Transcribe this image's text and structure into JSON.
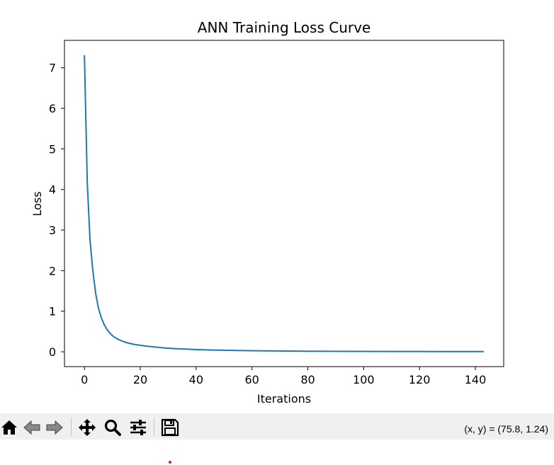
{
  "window": {
    "coords_readout": "(x, y) = (75.8, 1.24)"
  },
  "toolbar": {
    "buttons": [
      {
        "icon": "home-icon"
      },
      {
        "icon": "back-arrow-icon"
      },
      {
        "icon": "forward-arrow-icon"
      },
      {
        "icon": "pan-move-icon"
      },
      {
        "icon": "zoom-magnifier-icon"
      },
      {
        "icon": "configure-subplots-icon"
      },
      {
        "icon": "save-floppy-icon"
      }
    ]
  },
  "colors": {
    "line": "#1f77b4",
    "toolbar_bg": "#f0f0f0"
  },
  "chart_data": {
    "type": "line",
    "title": "ANN Training Loss Curve",
    "xlabel": "Iterations",
    "ylabel": "Loss",
    "xlim": [
      -7.15,
      150.15
    ],
    "ylim": [
      -0.365,
      7.675
    ],
    "xticks": [
      0,
      20,
      40,
      60,
      80,
      100,
      120,
      140
    ],
    "yticks": [
      0,
      1,
      2,
      3,
      4,
      5,
      6,
      7
    ],
    "grid": false,
    "legend": "none",
    "series": [
      {
        "x": [
          0,
          1,
          2,
          3,
          4,
          5,
          6,
          7,
          8,
          9,
          10,
          11,
          12,
          13,
          14,
          15,
          16,
          18,
          20,
          22,
          25,
          28,
          31,
          35,
          40,
          45,
          50,
          55,
          60,
          65,
          70,
          80,
          90,
          100,
          110,
          120,
          130,
          143
        ],
        "y": [
          7.31,
          4.2,
          2.75,
          2.0,
          1.45,
          1.08,
          0.85,
          0.68,
          0.56,
          0.47,
          0.4,
          0.35,
          0.31,
          0.28,
          0.25,
          0.23,
          0.21,
          0.18,
          0.16,
          0.14,
          0.12,
          0.1,
          0.085,
          0.07,
          0.055,
          0.045,
          0.038,
          0.032,
          0.027,
          0.023,
          0.02,
          0.015,
          0.012,
          0.01,
          0.008,
          0.007,
          0.006,
          0.005
        ]
      }
    ]
  }
}
